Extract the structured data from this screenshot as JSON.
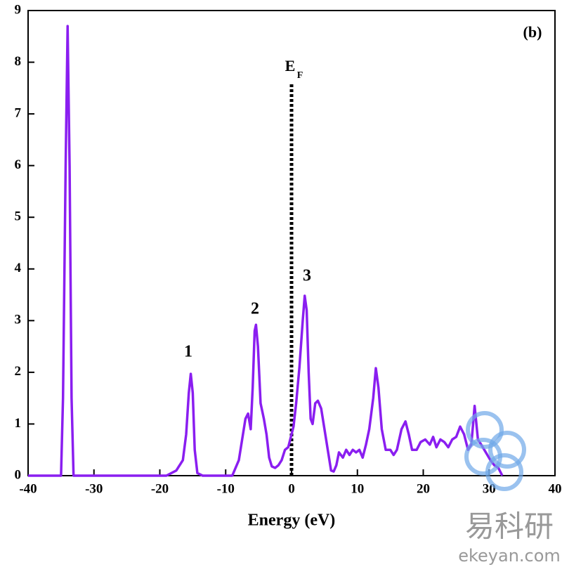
{
  "chart_data": {
    "type": "line",
    "x_label": "Energy (eV)",
    "panel_label": "(b)",
    "fermi_label": "E",
    "fermi_label_subscript": "F",
    "fermi_level": 0,
    "peak_labels": [
      "1",
      "2",
      "3"
    ],
    "watermark": [
      "易科研",
      "ekeyan.com"
    ],
    "xlim": [
      -40,
      40
    ],
    "xticks": [
      -40,
      -30,
      -20,
      -10,
      0,
      10,
      20,
      30,
      40
    ],
    "ylim": [
      0,
      9
    ],
    "yticks": [
      0,
      1,
      2,
      3,
      4,
      5,
      6,
      7,
      8,
      9
    ],
    "x": [
      -40,
      -35,
      -34.7,
      -34.3,
      -34,
      -33.7,
      -33.4,
      -33.1,
      -19,
      -17.5,
      -16.5,
      -16,
      -15.6,
      -15.3,
      -15,
      -14.7,
      -14.3,
      -13.5,
      -9,
      -8,
      -7.5,
      -7,
      -6.6,
      -6.2,
      -5.9,
      -5.6,
      -5.4,
      -5.1,
      -4.7,
      -4.2,
      -3.8,
      -3.4,
      -3,
      -2.5,
      -2,
      -1.5,
      -1,
      -0.5,
      0,
      0.3,
      0.7,
      1.2,
      1.7,
      2,
      2.3,
      2.6,
      2.9,
      3.2,
      3.6,
      4,
      4.5,
      5,
      5.5,
      6,
      6.4,
      6.8,
      7.2,
      7.8,
      8.3,
      8.8,
      9.3,
      9.8,
      10.3,
      10.8,
      11.3,
      11.8,
      12.4,
      12.8,
      13.2,
      13.7,
      14.3,
      15,
      15.5,
      16,
      16.7,
      17.3,
      17.8,
      18.3,
      19,
      19.6,
      20.3,
      21,
      21.5,
      22,
      22.6,
      23.2,
      23.8,
      24.4,
      25,
      25.6,
      26.2,
      26.8,
      27.3,
      27.8,
      28.3,
      28.8,
      29.5,
      30.2,
      30.8,
      31.4,
      32
    ],
    "series": [
      {
        "color": "#8a1ef0",
        "values": [
          0,
          0,
          1.5,
          6,
          8.7,
          6,
          1.5,
          0,
          0,
          0.1,
          0.3,
          0.8,
          1.6,
          1.97,
          1.6,
          0.5,
          0.05,
          0,
          0,
          0.3,
          0.7,
          1.1,
          1.2,
          0.9,
          1.7,
          2.8,
          2.92,
          2.5,
          1.4,
          1.1,
          0.8,
          0.35,
          0.18,
          0.15,
          0.2,
          0.3,
          0.5,
          0.55,
          0.8,
          0.95,
          1.4,
          2.1,
          3,
          3.48,
          3.2,
          2,
          1.1,
          1,
          1.4,
          1.45,
          1.3,
          0.9,
          0.5,
          0.1,
          0.08,
          0.2,
          0.45,
          0.35,
          0.5,
          0.4,
          0.5,
          0.45,
          0.5,
          0.35,
          0.6,
          0.9,
          1.5,
          2.08,
          1.7,
          0.9,
          0.5,
          0.5,
          0.4,
          0.5,
          0.9,
          1.05,
          0.8,
          0.5,
          0.5,
          0.65,
          0.7,
          0.6,
          0.75,
          0.55,
          0.7,
          0.65,
          0.55,
          0.7,
          0.75,
          0.95,
          0.8,
          0.5,
          0.6,
          1.35,
          0.7,
          0.6,
          0.45,
          0.3,
          0.2,
          0.15,
          0
        ]
      }
    ]
  }
}
